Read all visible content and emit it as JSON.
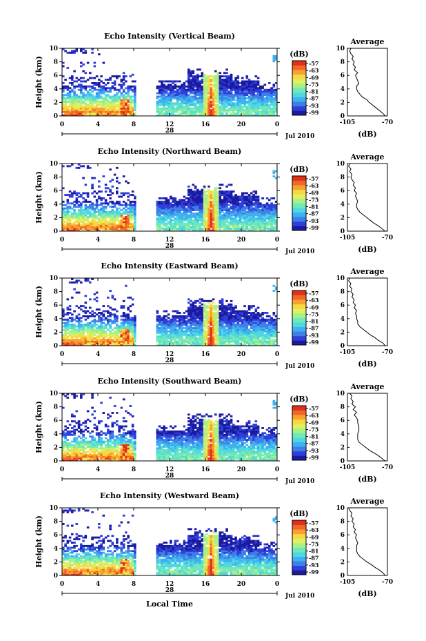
{
  "figure": {
    "common": {
      "height_axis_label": "Height (km)",
      "height_ticks": [
        0,
        2,
        4,
        6,
        8,
        10
      ],
      "time_ticks": [
        0,
        4,
        8,
        12,
        16,
        20,
        0
      ],
      "date_day": "28",
      "date_month_year": "Jul 2010",
      "colorbar_unit": "(dB)",
      "colorbar_ticks": [
        -57,
        -63,
        -69,
        -75,
        -81,
        -87,
        -93,
        -99
      ],
      "average_title": "Average",
      "average_xlabel": "(dB)",
      "average_xticks": [
        -105,
        -70
      ],
      "xaxis_label": "Local Time",
      "colorscale": [
        "#1b1aa0",
        "#2f3fd8",
        "#3f7fe8",
        "#3fb0f0",
        "#4fd8e0",
        "#70e8b8",
        "#a8f088",
        "#e0f060",
        "#f8d840",
        "#f8a030",
        "#f06828",
        "#e03018"
      ]
    },
    "chart_data": [
      {
        "type": "heatmap",
        "title": "Echo Intensity (Vertical Beam)",
        "xlim": [
          0,
          24
        ],
        "ylim": [
          0,
          10
        ],
        "zlim": [
          -99,
          -57
        ],
        "average_profile": {
          "x": [
            -72,
            -74,
            -77,
            -80,
            -83,
            -86,
            -88,
            -92,
            -94,
            -96,
            -97,
            -97,
            -95,
            -96,
            -97,
            -98,
            -96,
            -99,
            -98,
            -100,
            -99,
            -101,
            -100,
            -102,
            -103,
            -102
          ],
          "y": [
            0,
            0.4,
            0.8,
            1.2,
            1.6,
            2.0,
            2.4,
            2.8,
            3.2,
            3.6,
            4.0,
            4.4,
            4.8,
            5.2,
            5.6,
            6.0,
            6.4,
            6.8,
            7.2,
            7.6,
            8.0,
            8.4,
            8.8,
            9.2,
            9.6,
            10.0
          ],
          "xlim": [
            -105,
            -70
          ],
          "ylim": [
            0,
            10
          ]
        }
      },
      {
        "type": "heatmap",
        "title": "Echo Intensity (Northward Beam)",
        "xlim": [
          0,
          24
        ],
        "ylim": [
          0,
          10
        ],
        "zlim": [
          -99,
          -57
        ],
        "average_profile": {
          "x": [
            -72,
            -75,
            -78,
            -82,
            -85,
            -88,
            -91,
            -94,
            -96,
            -97,
            -97,
            -96,
            -97,
            -98,
            -97,
            -99,
            -98,
            -100,
            -99,
            -101,
            -102,
            -101,
            -103,
            -102,
            -104,
            -103
          ],
          "y": [
            0,
            0.4,
            0.8,
            1.2,
            1.6,
            2.0,
            2.4,
            2.8,
            3.2,
            3.6,
            4.0,
            4.4,
            4.8,
            5.2,
            5.6,
            6.0,
            6.4,
            6.8,
            7.2,
            7.6,
            8.0,
            8.4,
            8.8,
            9.2,
            9.6,
            10.0
          ],
          "xlim": [
            -105,
            -70
          ],
          "ylim": [
            0,
            10
          ]
        }
      },
      {
        "type": "heatmap",
        "title": "Echo Intensity (Eastward Beam)",
        "xlim": [
          0,
          24
        ],
        "ylim": [
          0,
          10
        ],
        "zlim": [
          -99,
          -57
        ],
        "average_profile": {
          "x": [
            -72,
            -74,
            -78,
            -81,
            -85,
            -88,
            -91,
            -94,
            -96,
            -96,
            -97,
            -97,
            -98,
            -97,
            -99,
            -98,
            -100,
            -99,
            -101,
            -100,
            -102,
            -101,
            -103,
            -102,
            -104,
            -103
          ],
          "y": [
            0,
            0.4,
            0.8,
            1.2,
            1.6,
            2.0,
            2.4,
            2.8,
            3.2,
            3.6,
            4.0,
            4.4,
            4.8,
            5.2,
            5.6,
            6.0,
            6.4,
            6.8,
            7.2,
            7.6,
            8.0,
            8.4,
            8.8,
            9.2,
            9.6,
            10.0
          ],
          "xlim": [
            -105,
            -70
          ],
          "ylim": [
            0,
            10
          ]
        }
      },
      {
        "type": "heatmap",
        "title": "Echo Intensity (Southward Beam)",
        "xlim": [
          0,
          24
        ],
        "ylim": [
          0,
          10
        ],
        "zlim": [
          -99,
          -57
        ],
        "average_profile": {
          "x": [
            -72,
            -75,
            -78,
            -82,
            -86,
            -89,
            -92,
            -95,
            -96,
            -96,
            -96,
            -95,
            -95,
            -95,
            -96,
            -96,
            -97,
            -99,
            -97,
            -100,
            -98,
            -101,
            -100,
            -102,
            -101,
            -103
          ],
          "y": [
            0,
            0.4,
            0.8,
            1.2,
            1.6,
            2.0,
            2.4,
            2.8,
            3.2,
            3.6,
            4.0,
            4.4,
            4.8,
            5.2,
            5.6,
            6.0,
            6.4,
            6.8,
            7.2,
            7.6,
            8.0,
            8.4,
            8.8,
            9.2,
            9.6,
            10.0
          ],
          "xlim": [
            -105,
            -70
          ],
          "ylim": [
            0,
            10
          ]
        }
      },
      {
        "type": "heatmap",
        "title": "Echo Intensity (Westward Beam)",
        "xlim": [
          0,
          24
        ],
        "ylim": [
          0,
          10
        ],
        "zlim": [
          -99,
          -57
        ],
        "average_profile": {
          "x": [
            -72,
            -74,
            -77,
            -81,
            -84,
            -88,
            -91,
            -94,
            -96,
            -97,
            -97,
            -97,
            -96,
            -97,
            -98,
            -97,
            -99,
            -98,
            -100,
            -99,
            -101,
            -100,
            -102,
            -101,
            -103,
            -104
          ],
          "y": [
            0,
            0.4,
            0.8,
            1.2,
            1.6,
            2.0,
            2.4,
            2.8,
            3.2,
            3.6,
            4.0,
            4.4,
            4.8,
            5.2,
            5.6,
            6.0,
            6.4,
            6.8,
            7.2,
            7.6,
            8.0,
            8.4,
            8.8,
            9.2,
            9.6,
            10.0
          ],
          "xlim": [
            -105,
            -70
          ],
          "ylim": [
            0,
            10
          ]
        }
      }
    ]
  }
}
